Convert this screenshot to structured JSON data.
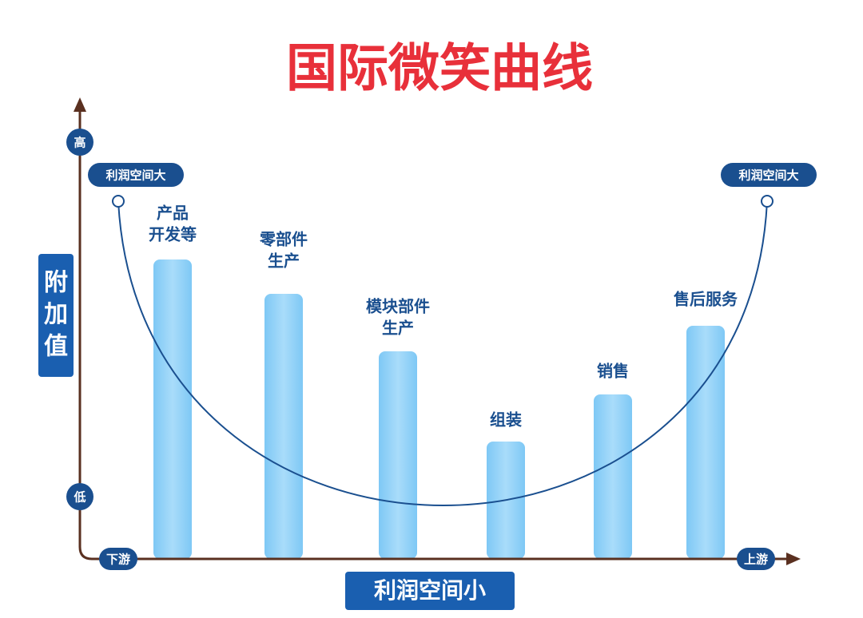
{
  "title": "国际微笑曲线",
  "y_axis": {
    "label": "附加值",
    "high": "高",
    "low": "低"
  },
  "x_axis": {
    "label": "利润空间小",
    "left": "下游",
    "right": "上游"
  },
  "ends": {
    "left": "利润空间大",
    "right": "利润空间大"
  },
  "stages": [
    {
      "lines": [
        "产品",
        "开发等"
      ]
    },
    {
      "lines": [
        "零部件",
        "生产"
      ]
    },
    {
      "lines": [
        "模块部件",
        "生产"
      ]
    },
    {
      "lines": [
        "组装"
      ]
    },
    {
      "lines": [
        "销售"
      ]
    },
    {
      "lines": [
        "售后服务"
      ]
    }
  ]
}
